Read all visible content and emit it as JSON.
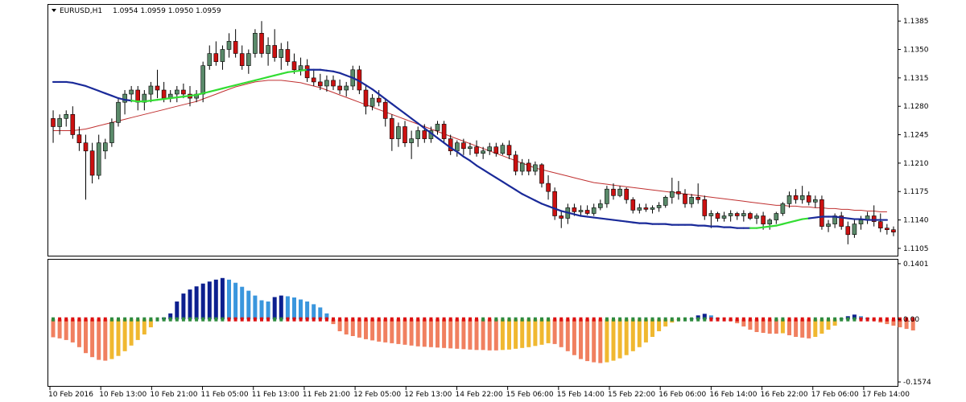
{
  "chart_data": {
    "type": "candlestick",
    "header": {
      "symbol": "EURUSD,H1",
      "ohlc": "1.0954 1.0959 1.0950 1.0959"
    },
    "colors": {
      "bull": "#5a8a6a",
      "bear": "#cc1111",
      "ma_up": "#33dd33",
      "ma_down": "#1a2a99",
      "slow_ma": "#c03030",
      "hist_pos_strong": "#0c1f8f",
      "hist_pos_weak": "#3a96dd",
      "hist_neg_strong": "#f08060",
      "hist_neg_weak": "#f0b830",
      "dot_up": "#2e8b3e",
      "dot_down": "#dd1111"
    },
    "price_axis": {
      "min": 1.1096,
      "max": 1.1405,
      "ticks": [
        "1.1385",
        "1.1350",
        "1.1315",
        "1.1280",
        "1.1245",
        "1.1210",
        "1.1175",
        "1.1140",
        "1.1105"
      ]
    },
    "oscillator_axis": {
      "min": -0.1674,
      "max": 0.1501,
      "ticks": [
        "0.1401",
        "0.00",
        "-0.1574"
      ]
    },
    "time_labels": [
      "10 Feb 2016",
      "10 Feb 13:00",
      "10 Feb 21:00",
      "11 Feb 05:00",
      "11 Feb 13:00",
      "11 Feb 21:00",
      "12 Feb 05:00",
      "12 Feb 13:00",
      "14 Feb 22:00",
      "15 Feb 06:00",
      "15 Feb 14:00",
      "15 Feb 22:00",
      "16 Feb 06:00",
      "16 Feb 14:00",
      "16 Feb 22:00",
      "17 Feb 06:00",
      "17 Feb 14:00"
    ],
    "candles_start": 0,
    "candles": [
      [
        1.1265,
        1.1275,
        1.1235,
        1.1255
      ],
      [
        1.1255,
        1.127,
        1.1245,
        1.1265
      ],
      [
        1.1265,
        1.1275,
        1.1255,
        1.127
      ],
      [
        1.127,
        1.128,
        1.124,
        1.1245
      ],
      [
        1.1245,
        1.1255,
        1.1225,
        1.1235
      ],
      [
        1.1235,
        1.1245,
        1.1165,
        1.1225
      ],
      [
        1.1225,
        1.1235,
        1.1185,
        1.1195
      ],
      [
        1.1195,
        1.1245,
        1.119,
        1.1235
      ],
      [
        1.1225,
        1.124,
        1.1215,
        1.1235
      ],
      [
        1.1235,
        1.1265,
        1.123,
        1.126
      ],
      [
        1.126,
        1.129,
        1.1255,
        1.1285
      ],
      [
        1.1285,
        1.13,
        1.127,
        1.1295
      ],
      [
        1.1295,
        1.1305,
        1.1285,
        1.13
      ],
      [
        1.13,
        1.1305,
        1.1275,
        1.1285
      ],
      [
        1.1285,
        1.13,
        1.1275,
        1.1295
      ],
      [
        1.1295,
        1.131,
        1.1285,
        1.1305
      ],
      [
        1.1305,
        1.1325,
        1.129,
        1.13
      ],
      [
        1.13,
        1.131,
        1.1285,
        1.129
      ],
      [
        1.129,
        1.13,
        1.1285,
        1.1295
      ],
      [
        1.1295,
        1.1305,
        1.1285,
        1.13
      ],
      [
        1.13,
        1.1308,
        1.129,
        1.1295
      ],
      [
        1.1295,
        1.1305,
        1.128,
        1.129
      ],
      [
        1.129,
        1.13,
        1.1285,
        1.1295
      ],
      [
        1.1295,
        1.1335,
        1.1285,
        1.133
      ],
      [
        1.133,
        1.1355,
        1.1325,
        1.1345
      ],
      [
        1.1345,
        1.136,
        1.133,
        1.1335
      ],
      [
        1.1335,
        1.1355,
        1.1325,
        1.135
      ],
      [
        1.135,
        1.137,
        1.134,
        1.136
      ],
      [
        1.136,
        1.1375,
        1.134,
        1.1345
      ],
      [
        1.1345,
        1.1355,
        1.1325,
        1.133
      ],
      [
        1.133,
        1.135,
        1.132,
        1.1345
      ],
      [
        1.1345,
        1.1375,
        1.134,
        1.137
      ],
      [
        1.137,
        1.1385,
        1.134,
        1.1345
      ],
      [
        1.1345,
        1.1365,
        1.133,
        1.1355
      ],
      [
        1.1355,
        1.1375,
        1.1335,
        1.134
      ],
      [
        1.134,
        1.1358,
        1.1325,
        1.135
      ],
      [
        1.135,
        1.136,
        1.133,
        1.1335
      ],
      [
        1.1335,
        1.1345,
        1.132,
        1.1325
      ],
      [
        1.1325,
        1.134,
        1.1318,
        1.133
      ],
      [
        1.133,
        1.1338,
        1.131,
        1.1315
      ],
      [
        1.1315,
        1.1325,
        1.1305,
        1.131
      ],
      [
        1.131,
        1.132,
        1.13,
        1.1305
      ],
      [
        1.1305,
        1.1318,
        1.1298,
        1.1312
      ],
      [
        1.1312,
        1.1318,
        1.13,
        1.1305
      ],
      [
        1.1305,
        1.1313,
        1.1295,
        1.13
      ],
      [
        1.13,
        1.131,
        1.1292,
        1.1305
      ],
      [
        1.1305,
        1.133,
        1.13,
        1.1325
      ],
      [
        1.1325,
        1.133,
        1.1295,
        1.13
      ],
      [
        1.13,
        1.1305,
        1.127,
        1.128
      ],
      [
        1.128,
        1.1295,
        1.1275,
        1.129
      ],
      [
        1.129,
        1.13,
        1.128,
        1.1285
      ],
      [
        1.1285,
        1.129,
        1.1255,
        1.1265
      ],
      [
        1.1265,
        1.127,
        1.1225,
        1.124
      ],
      [
        1.124,
        1.126,
        1.123,
        1.1255
      ],
      [
        1.1255,
        1.1262,
        1.123,
        1.1235
      ],
      [
        1.1235,
        1.125,
        1.1215,
        1.124
      ],
      [
        1.124,
        1.1255,
        1.123,
        1.125
      ],
      [
        1.125,
        1.1258,
        1.1235,
        1.124
      ],
      [
        1.124,
        1.1255,
        1.1235,
        1.125
      ],
      [
        1.125,
        1.1262,
        1.1245,
        1.1258
      ],
      [
        1.1258,
        1.1262,
        1.1235,
        1.124
      ],
      [
        1.124,
        1.1245,
        1.122,
        1.1225
      ],
      [
        1.1225,
        1.1238,
        1.1218,
        1.1235
      ],
      [
        1.1235,
        1.124,
        1.122,
        1.1228
      ],
      [
        1.1228,
        1.1235,
        1.122,
        1.123
      ],
      [
        1.123,
        1.1238,
        1.1218,
        1.1222
      ],
      [
        1.1222,
        1.123,
        1.1215,
        1.1225
      ],
      [
        1.1225,
        1.1235,
        1.122,
        1.123
      ],
      [
        1.123,
        1.1235,
        1.1218,
        1.1222
      ],
      [
        1.1222,
        1.1235,
        1.122,
        1.1232
      ],
      [
        1.1232,
        1.1238,
        1.1215,
        1.122
      ],
      [
        1.122,
        1.1225,
        1.1195,
        1.12
      ],
      [
        1.12,
        1.1215,
        1.1195,
        1.121
      ],
      [
        1.121,
        1.1215,
        1.1195,
        1.12
      ],
      [
        1.12,
        1.1212,
        1.1195,
        1.1208
      ],
      [
        1.1208,
        1.121,
        1.118,
        1.1185
      ],
      [
        1.1185,
        1.1195,
        1.1165,
        1.1175
      ],
      [
        1.1175,
        1.118,
        1.114,
        1.1145
      ],
      [
        1.1145,
        1.115,
        1.113,
        1.1142
      ],
      [
        1.1142,
        1.116,
        1.1135,
        1.1155
      ],
      [
        1.1155,
        1.116,
        1.1145,
        1.115
      ],
      [
        1.115,
        1.1158,
        1.1145,
        1.1152
      ],
      [
        1.1152,
        1.1158,
        1.1146,
        1.1148
      ],
      [
        1.1148,
        1.116,
        1.1145,
        1.1155
      ],
      [
        1.1155,
        1.1165,
        1.1152,
        1.116
      ],
      [
        1.116,
        1.1182,
        1.1155,
        1.1178
      ],
      [
        1.1178,
        1.1185,
        1.1165,
        1.117
      ],
      [
        1.117,
        1.1182,
        1.1168,
        1.1178
      ],
      [
        1.1178,
        1.118,
        1.116,
        1.1165
      ],
      [
        1.1165,
        1.1168,
        1.1148,
        1.1152
      ],
      [
        1.1152,
        1.116,
        1.1148,
        1.1155
      ],
      [
        1.1155,
        1.116,
        1.115,
        1.1153
      ],
      [
        1.1153,
        1.1158,
        1.1148,
        1.1155
      ],
      [
        1.1155,
        1.1162,
        1.115,
        1.1158
      ],
      [
        1.1158,
        1.117,
        1.1155,
        1.1168
      ],
      [
        1.1168,
        1.1192,
        1.116,
        1.1175
      ],
      [
        1.1175,
        1.1188,
        1.1165,
        1.1172
      ],
      [
        1.1172,
        1.1178,
        1.1155,
        1.116
      ],
      [
        1.116,
        1.1172,
        1.1155,
        1.1168
      ],
      [
        1.1168,
        1.1185,
        1.116,
        1.1165
      ],
      [
        1.1165,
        1.117,
        1.114,
        1.1145
      ],
      [
        1.1145,
        1.1152,
        1.113,
        1.1148
      ],
      [
        1.1148,
        1.115,
        1.1138,
        1.1142
      ],
      [
        1.1142,
        1.115,
        1.1138,
        1.1145
      ],
      [
        1.1145,
        1.1152,
        1.1138,
        1.1148
      ],
      [
        1.1148,
        1.115,
        1.114,
        1.1145
      ],
      [
        1.1145,
        1.1152,
        1.1138,
        1.1148
      ],
      [
        1.1148,
        1.115,
        1.114,
        1.1142
      ],
      [
        1.1142,
        1.1148,
        1.1135,
        1.1145
      ],
      [
        1.1145,
        1.115,
        1.1128,
        1.1135
      ],
      [
        1.1135,
        1.1142,
        1.1128,
        1.114
      ],
      [
        1.114,
        1.115,
        1.1135,
        1.1148
      ],
      [
        1.1148,
        1.1162,
        1.1145,
        1.116
      ],
      [
        1.116,
        1.1175,
        1.1155,
        1.117
      ],
      [
        1.117,
        1.1178,
        1.116,
        1.1165
      ],
      [
        1.1165,
        1.1182,
        1.116,
        1.117
      ],
      [
        1.117,
        1.1175,
        1.1158,
        1.1162
      ],
      [
        1.1162,
        1.117,
        1.1155,
        1.1165
      ],
      [
        1.1165,
        1.117,
        1.1128,
        1.1132
      ],
      [
        1.1132,
        1.114,
        1.1125,
        1.1135
      ],
      [
        1.1135,
        1.1148,
        1.113,
        1.1145
      ],
      [
        1.1145,
        1.115,
        1.1128,
        1.1132
      ],
      [
        1.1132,
        1.1138,
        1.111,
        1.1122
      ],
      [
        1.1122,
        1.114,
        1.1118,
        1.1135
      ],
      [
        1.1135,
        1.1145,
        1.1128,
        1.114
      ],
      [
        1.114,
        1.115,
        1.1135,
        1.1145
      ],
      [
        1.1145,
        1.1158,
        1.1132,
        1.1138
      ],
      [
        1.1138,
        1.1148,
        1.1125,
        1.113
      ],
      [
        1.113,
        1.1135,
        1.1122,
        1.1128
      ],
      [
        1.1128,
        1.1132,
        1.112,
        1.1125
      ]
    ],
    "fast_ma": [
      1.131,
      1.131,
      1.131,
      1.1309,
      1.1307,
      1.1305,
      1.1302,
      1.1299,
      1.1296,
      1.1293,
      1.129,
      1.1288,
      1.1287,
      1.1286,
      1.1286,
      1.1287,
      1.1288,
      1.1289,
      1.129,
      1.1291,
      1.1292,
      1.1293,
      1.1294,
      1.1296,
      1.1298,
      1.13,
      1.1302,
      1.1304,
      1.1306,
      1.1308,
      1.131,
      1.1312,
      1.1314,
      1.1316,
      1.1318,
      1.132,
      1.1322,
      1.1323,
      1.1324,
      1.1325,
      1.1325,
      1.1325,
      1.1324,
      1.1323,
      1.1321,
      1.1318,
      1.1315,
      1.1311,
      1.1306,
      1.1301,
      1.1295,
      1.1289,
      1.1283,
      1.1277,
      1.1271,
      1.1265,
      1.1259,
      1.1253,
      1.1247,
      1.1241,
      1.1235,
      1.1229,
      1.1224,
      1.1218,
      1.1213,
      1.1207,
      1.1202,
      1.1197,
      1.1192,
      1.1187,
      1.1182,
      1.1177,
      1.1172,
      1.1168,
      1.1164,
      1.116,
      1.1157,
      1.1154,
      1.1151,
      1.1149,
      1.1147,
      1.1145,
      1.1144,
      1.1143,
      1.1142,
      1.1141,
      1.114,
      1.1139,
      1.1138,
      1.1137,
      1.1136,
      1.1136,
      1.1135,
      1.1135,
      1.1135,
      1.1134,
      1.1134,
      1.1134,
      1.1134,
      1.1133,
      1.1133,
      1.1132,
      1.1132,
      1.1131,
      1.1131,
      1.113,
      1.113,
      1.113,
      1.113,
      1.1131,
      1.1132,
      1.1133,
      1.1135,
      1.1137,
      1.1139,
      1.1141,
      1.1142,
      1.1143,
      1.1144,
      1.1144,
      1.1144,
      1.1143,
      1.1142,
      1.1141,
      1.1141,
      1.114,
      1.114,
      1.114,
      1.114
    ],
    "fast_ma_up": [
      false,
      false,
      false,
      false,
      false,
      false,
      false,
      false,
      false,
      false,
      false,
      false,
      false,
      true,
      true,
      true,
      true,
      true,
      true,
      true,
      true,
      true,
      true,
      true,
      true,
      true,
      true,
      true,
      true,
      true,
      true,
      true,
      true,
      true,
      true,
      true,
      true,
      true,
      true,
      true,
      false,
      false,
      false,
      false,
      false,
      false,
      false,
      false,
      false,
      false,
      false,
      false,
      false,
      false,
      false,
      false,
      false,
      false,
      false,
      false,
      false,
      false,
      false,
      false,
      false,
      false,
      false,
      false,
      false,
      false,
      false,
      false,
      false,
      false,
      false,
      false,
      false,
      false,
      false,
      false,
      false,
      false,
      false,
      false,
      false,
      false,
      false,
      false,
      false,
      false,
      false,
      false,
      false,
      false,
      false,
      false,
      false,
      false,
      false,
      false,
      false,
      false,
      false,
      false,
      false,
      false,
      false,
      false,
      true,
      true,
      true,
      true,
      true,
      true,
      true,
      true,
      true,
      false,
      false,
      false,
      false,
      false,
      false,
      false,
      false,
      false,
      false
    ],
    "slow_ma": [
      1.125,
      1.125,
      1.125,
      1.125,
      1.1251,
      1.1252,
      1.1254,
      1.1256,
      1.1258,
      1.126,
      1.1262,
      1.1264,
      1.1266,
      1.1268,
      1.127,
      1.1272,
      1.1274,
      1.1276,
      1.1278,
      1.128,
      1.1282,
      1.1284,
      1.1286,
      1.1289,
      1.1292,
      1.1295,
      1.1298,
      1.1301,
      1.1304,
      1.1306,
      1.1308,
      1.131,
      1.1311,
      1.1312,
      1.1312,
      1.1312,
      1.1311,
      1.131,
      1.1309,
      1.1307,
      1.1305,
      1.1303,
      1.13,
      1.1297,
      1.1294,
      1.1291,
      1.1288,
      1.1285,
      1.1282,
      1.1279,
      1.1276,
      1.1273,
      1.127,
      1.1267,
      1.1264,
      1.1261,
      1.1258,
      1.1255,
      1.1252,
      1.1249,
      1.1246,
      1.1243,
      1.124,
      1.1237,
      1.1234,
      1.1231,
      1.1228,
      1.1225,
      1.1222,
      1.1219,
      1.1216,
      1.1213,
      1.121,
      1.1207,
      1.1204,
      1.1202,
      1.12,
      1.1198,
      1.1196,
      1.1194,
      1.1192,
      1.119,
      1.1188,
      1.1186,
      1.1185,
      1.1184,
      1.1183,
      1.1182,
      1.1181,
      1.118,
      1.1179,
      1.1178,
      1.1177,
      1.1176,
      1.1175,
      1.1174,
      1.1173,
      1.1172,
      1.1171,
      1.117,
      1.1169,
      1.1168,
      1.1167,
      1.1166,
      1.1165,
      1.1164,
      1.1163,
      1.1162,
      1.1161,
      1.116,
      1.1159,
      1.1158,
      1.1158,
      1.1157,
      1.1157,
      1.1156,
      1.1156,
      1.1155,
      1.1155,
      1.1154,
      1.1154,
      1.1153,
      1.1153,
      1.1152,
      1.1152,
      1.1151,
      1.1151,
      1.115,
      1.115
    ],
    "histogram": [
      -0.045,
      -0.048,
      -0.052,
      -0.058,
      -0.07,
      -0.085,
      -0.095,
      -0.102,
      -0.104,
      -0.1,
      -0.092,
      -0.08,
      -0.066,
      -0.052,
      -0.038,
      -0.02,
      0.0,
      0.005,
      0.015,
      0.045,
      0.065,
      0.075,
      0.083,
      0.09,
      0.095,
      0.1,
      0.104,
      0.1,
      0.092,
      0.082,
      0.072,
      0.06,
      0.048,
      0.045,
      0.056,
      0.06,
      0.058,
      0.055,
      0.05,
      0.045,
      0.038,
      0.03,
      0.015,
      -0.012,
      -0.03,
      -0.038,
      -0.042,
      -0.046,
      -0.05,
      -0.053,
      -0.056,
      -0.058,
      -0.06,
      -0.062,
      -0.064,
      -0.066,
      -0.068,
      -0.069,
      -0.07,
      -0.071,
      -0.072,
      -0.073,
      -0.074,
      -0.075,
      -0.076,
      -0.077,
      -0.077,
      -0.078,
      -0.078,
      -0.077,
      -0.076,
      -0.074,
      -0.072,
      -0.07,
      -0.067,
      -0.064,
      -0.06,
      -0.062,
      -0.07,
      -0.08,
      -0.09,
      -0.1,
      -0.105,
      -0.108,
      -0.11,
      -0.108,
      -0.104,
      -0.098,
      -0.09,
      -0.08,
      -0.07,
      -0.058,
      -0.044,
      -0.03,
      -0.018,
      -0.008,
      -0.002,
      0.0,
      0.002,
      0.01,
      0.014,
      0.01,
      0.004,
      0.0,
      -0.004,
      -0.01,
      -0.018,
      -0.026,
      -0.032,
      -0.034,
      -0.036,
      -0.036,
      -0.035,
      -0.04,
      -0.044,
      -0.046,
      -0.048,
      -0.044,
      -0.036,
      -0.026,
      -0.016,
      0.002,
      0.008,
      0.012,
      0.008,
      0.004,
      -0.002,
      -0.008,
      -0.012,
      -0.016,
      -0.02,
      -0.024,
      -0.028
    ]
  }
}
